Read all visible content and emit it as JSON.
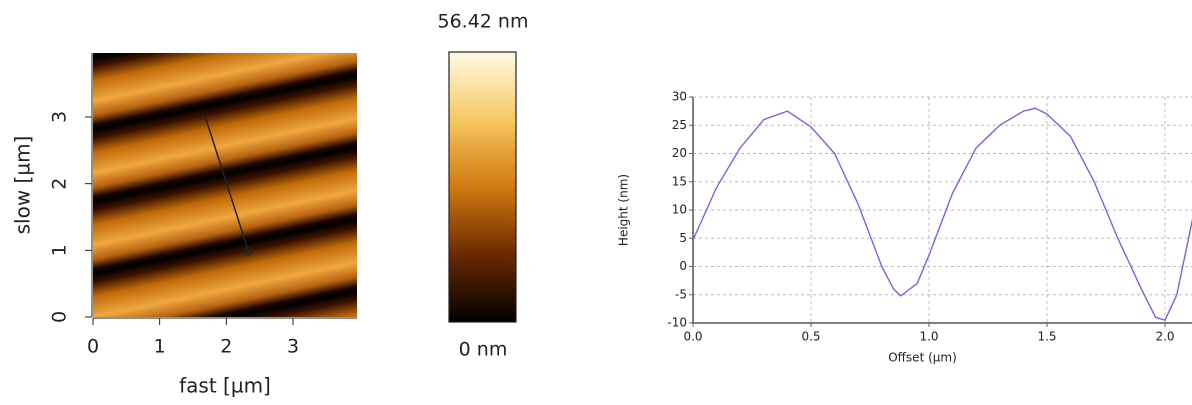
{
  "chart_data": [
    {
      "type": "heatmap",
      "xlabel": "fast [µm]",
      "ylabel": "slow [µm]",
      "xlim": [
        0,
        3.96
      ],
      "ylim": [
        0,
        3.96
      ],
      "xticks": [
        0,
        1,
        2,
        3
      ],
      "yticks": [
        0,
        1,
        2,
        3
      ],
      "colorbar_ticks": [
        {
          "value": 56.42,
          "label": "56.42 nm"
        },
        {
          "value": 0,
          "label": "0 nm"
        }
      ]
    },
    {
      "type": "line",
      "xlabel": "Offset (µm)",
      "ylabel": "Height (nm)",
      "x": [
        0,
        0.1,
        0.2,
        0.3,
        0.4,
        0.5,
        0.6,
        0.7,
        0.8,
        0.85,
        0.88,
        0.95,
        1.0,
        1.1,
        1.2,
        1.3,
        1.4,
        1.45,
        1.5,
        1.6,
        1.7,
        1.8,
        1.9,
        1.96,
        2.0,
        2.05,
        2.12
      ],
      "series": [
        {
          "color": "#6a6adf",
          "values": [
            4.7,
            14,
            21,
            26,
            27.5,
            24.7,
            20,
            11,
            0,
            -4,
            -5.2,
            -3,
            2,
            13,
            21,
            25,
            27.5,
            28,
            27,
            23,
            15,
            5,
            -4,
            -9,
            -9.5,
            -5,
            9
          ]
        }
      ],
      "xlim": [
        0,
        2.12
      ],
      "ylim": [
        -10,
        30
      ],
      "xticks": [
        {
          "value": 0,
          "label": "0.0"
        },
        {
          "value": 0.5,
          "label": "0.5"
        },
        {
          "value": 1,
          "label": "1.0"
        },
        {
          "value": 1.5,
          "label": "1.5"
        },
        {
          "value": 2,
          "label": "2.0"
        }
      ],
      "yticks": [
        -10,
        -5,
        0,
        5,
        10,
        15,
        20,
        25,
        30
      ],
      "grid": true
    }
  ]
}
